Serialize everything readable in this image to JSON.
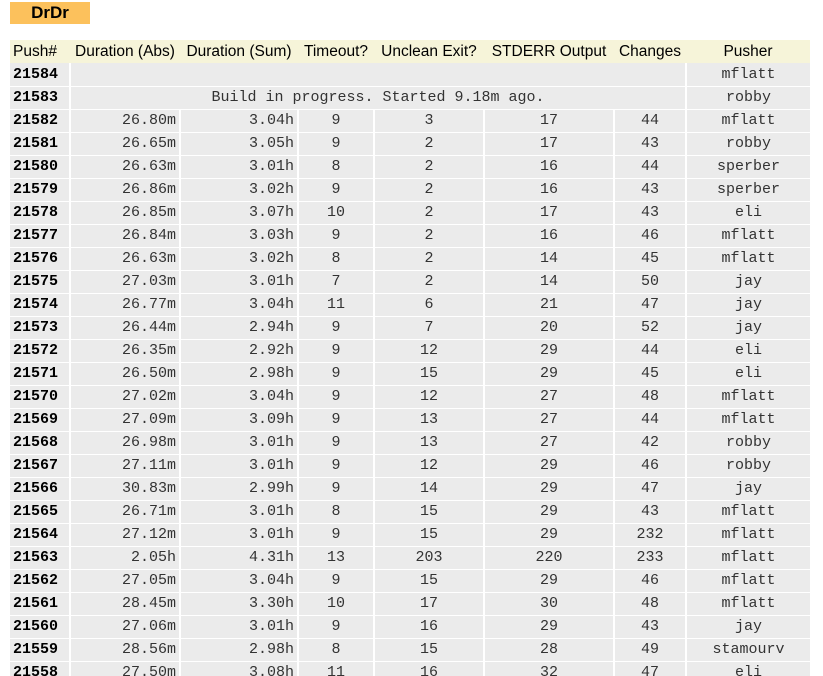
{
  "app": {
    "logo_text": "DrDr"
  },
  "table": {
    "headers": {
      "push": "Push#",
      "duration_abs": "Duration (Abs)",
      "duration_sum": "Duration (Sum)",
      "timeout": "Timeout?",
      "unclean_exit": "Unclean Exit?",
      "stderr_output": "STDERR Output",
      "changes": "Changes",
      "pusher": "Pusher"
    },
    "pending_rows": [
      {
        "push": "21584",
        "status": "",
        "pusher": "mflatt"
      },
      {
        "push": "21583",
        "status": "Build in progress. Started 9.18m ago.",
        "pusher": "robby"
      }
    ],
    "rows": [
      {
        "push": "21582",
        "dabs": "26.80m",
        "dsum": "3.04h",
        "timeout": "9",
        "unclean": "3",
        "stderr": "17",
        "changes": "44",
        "pusher": "mflatt"
      },
      {
        "push": "21581",
        "dabs": "26.65m",
        "dsum": "3.05h",
        "timeout": "9",
        "unclean": "2",
        "stderr": "17",
        "changes": "43",
        "pusher": "robby"
      },
      {
        "push": "21580",
        "dabs": "26.63m",
        "dsum": "3.01h",
        "timeout": "8",
        "unclean": "2",
        "stderr": "16",
        "changes": "44",
        "pusher": "sperber"
      },
      {
        "push": "21579",
        "dabs": "26.86m",
        "dsum": "3.02h",
        "timeout": "9",
        "unclean": "2",
        "stderr": "16",
        "changes": "43",
        "pusher": "sperber"
      },
      {
        "push": "21578",
        "dabs": "26.85m",
        "dsum": "3.07h",
        "timeout": "10",
        "unclean": "2",
        "stderr": "17",
        "changes": "43",
        "pusher": "eli"
      },
      {
        "push": "21577",
        "dabs": "26.84m",
        "dsum": "3.03h",
        "timeout": "9",
        "unclean": "2",
        "stderr": "16",
        "changes": "46",
        "pusher": "mflatt"
      },
      {
        "push": "21576",
        "dabs": "26.63m",
        "dsum": "3.02h",
        "timeout": "8",
        "unclean": "2",
        "stderr": "14",
        "changes": "45",
        "pusher": "mflatt"
      },
      {
        "push": "21575",
        "dabs": "27.03m",
        "dsum": "3.01h",
        "timeout": "7",
        "unclean": "2",
        "stderr": "14",
        "changes": "50",
        "pusher": "jay"
      },
      {
        "push": "21574",
        "dabs": "26.77m",
        "dsum": "3.04h",
        "timeout": "11",
        "unclean": "6",
        "stderr": "21",
        "changes": "47",
        "pusher": "jay"
      },
      {
        "push": "21573",
        "dabs": "26.44m",
        "dsum": "2.94h",
        "timeout": "9",
        "unclean": "7",
        "stderr": "20",
        "changes": "52",
        "pusher": "jay"
      },
      {
        "push": "21572",
        "dabs": "26.35m",
        "dsum": "2.92h",
        "timeout": "9",
        "unclean": "12",
        "stderr": "29",
        "changes": "44",
        "pusher": "eli"
      },
      {
        "push": "21571",
        "dabs": "26.50m",
        "dsum": "2.98h",
        "timeout": "9",
        "unclean": "15",
        "stderr": "29",
        "changes": "45",
        "pusher": "eli"
      },
      {
        "push": "21570",
        "dabs": "27.02m",
        "dsum": "3.04h",
        "timeout": "9",
        "unclean": "12",
        "stderr": "27",
        "changes": "48",
        "pusher": "mflatt"
      },
      {
        "push": "21569",
        "dabs": "27.09m",
        "dsum": "3.09h",
        "timeout": "9",
        "unclean": "13",
        "stderr": "27",
        "changes": "44",
        "pusher": "mflatt"
      },
      {
        "push": "21568",
        "dabs": "26.98m",
        "dsum": "3.01h",
        "timeout": "9",
        "unclean": "13",
        "stderr": "27",
        "changes": "42",
        "pusher": "robby"
      },
      {
        "push": "21567",
        "dabs": "27.11m",
        "dsum": "3.01h",
        "timeout": "9",
        "unclean": "12",
        "stderr": "29",
        "changes": "46",
        "pusher": "robby"
      },
      {
        "push": "21566",
        "dabs": "30.83m",
        "dsum": "2.99h",
        "timeout": "9",
        "unclean": "14",
        "stderr": "29",
        "changes": "47",
        "pusher": "jay"
      },
      {
        "push": "21565",
        "dabs": "26.71m",
        "dsum": "3.01h",
        "timeout": "8",
        "unclean": "15",
        "stderr": "29",
        "changes": "43",
        "pusher": "mflatt"
      },
      {
        "push": "21564",
        "dabs": "27.12m",
        "dsum": "3.01h",
        "timeout": "9",
        "unclean": "15",
        "stderr": "29",
        "changes": "232",
        "pusher": "mflatt"
      },
      {
        "push": "21563",
        "dabs": "2.05h",
        "dsum": "4.31h",
        "timeout": "13",
        "unclean": "203",
        "stderr": "220",
        "changes": "233",
        "pusher": "mflatt"
      },
      {
        "push": "21562",
        "dabs": "27.05m",
        "dsum": "3.04h",
        "timeout": "9",
        "unclean": "15",
        "stderr": "29",
        "changes": "46",
        "pusher": "mflatt"
      },
      {
        "push": "21561",
        "dabs": "28.45m",
        "dsum": "3.30h",
        "timeout": "10",
        "unclean": "17",
        "stderr": "30",
        "changes": "48",
        "pusher": "mflatt"
      },
      {
        "push": "21560",
        "dabs": "27.06m",
        "dsum": "3.01h",
        "timeout": "9",
        "unclean": "16",
        "stderr": "29",
        "changes": "43",
        "pusher": "jay"
      },
      {
        "push": "21559",
        "dabs": "28.56m",
        "dsum": "2.98h",
        "timeout": "8",
        "unclean": "15",
        "stderr": "28",
        "changes": "49",
        "pusher": "stamourv"
      },
      {
        "push": "21558",
        "dabs": "27.50m",
        "dsum": "3.08h",
        "timeout": "11",
        "unclean": "16",
        "stderr": "32",
        "changes": "47",
        "pusher": "eli"
      }
    ]
  },
  "colors": {
    "logo_bg": "#fcc15c",
    "header_bg": "#f6f4d9",
    "row_bg": "#ebebeb"
  }
}
